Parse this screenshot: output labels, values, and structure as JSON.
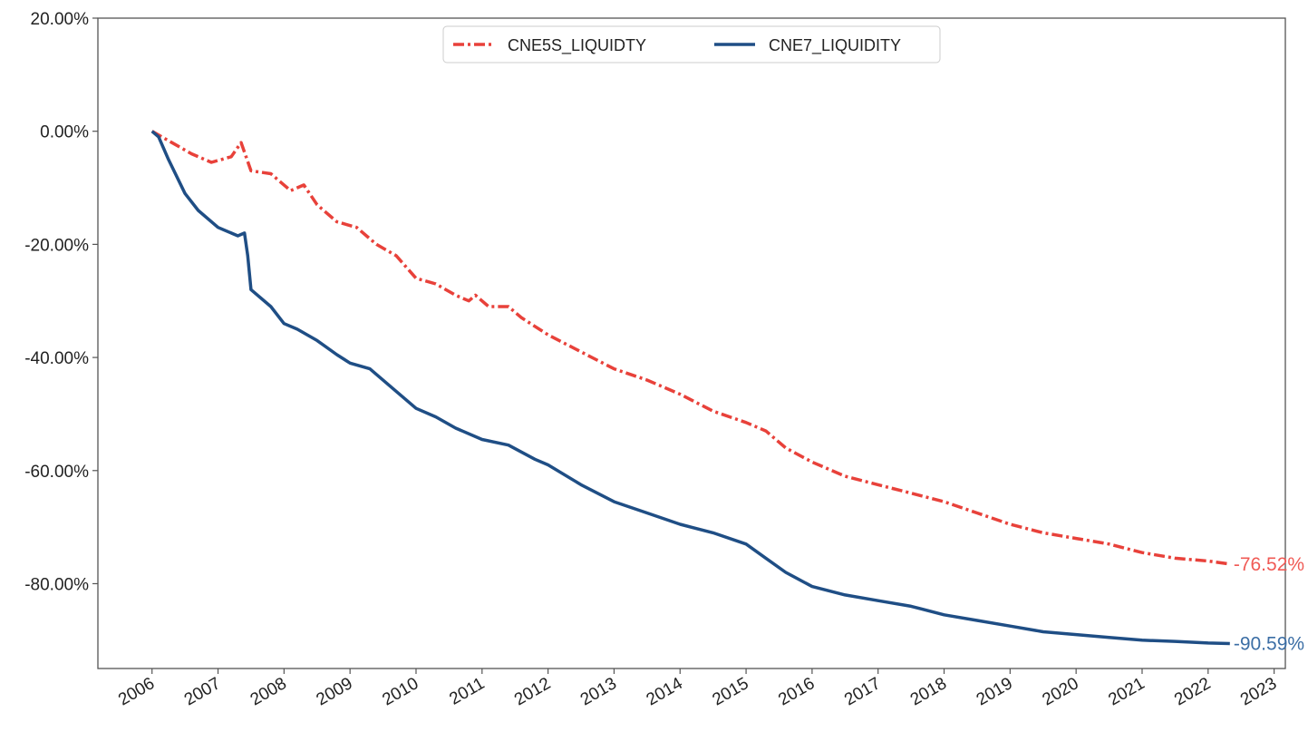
{
  "chart_data": {
    "type": "line",
    "title": "",
    "xlabel": "",
    "ylabel": "",
    "xlim": [
      2005.18,
      2023.17
    ],
    "ylim": [
      -95,
      20
    ],
    "grid": false,
    "legend_position": "top-center",
    "y_ticks": [
      20,
      0,
      -20,
      -40,
      -60,
      -80
    ],
    "y_tick_labels": [
      "20.00%",
      "0.00%",
      "-20.00%",
      "-40.00%",
      "-60.00%",
      "-80.00%"
    ],
    "x_ticks": [
      2006,
      2007,
      2008,
      2009,
      2010,
      2011,
      2012,
      2013,
      2014,
      2015,
      2016,
      2017,
      2018,
      2019,
      2020,
      2021,
      2022,
      2023
    ],
    "x_tick_labels": [
      "2006",
      "2007",
      "2008",
      "2009",
      "2010",
      "2011",
      "2012",
      "2013",
      "2014",
      "2015",
      "2016",
      "2017",
      "2018",
      "2019",
      "2020",
      "2021",
      "2022",
      "2023"
    ],
    "series": [
      {
        "name": "CNE5S_LIQUIDTY",
        "color": "#e8413a",
        "style": "dashdot",
        "end_label": "-76.52%",
        "end_label_color": "#f05a55",
        "x": [
          2006.0,
          2006.3,
          2006.6,
          2006.9,
          2007.2,
          2007.35,
          2007.5,
          2007.8,
          2008.1,
          2008.3,
          2008.5,
          2008.8,
          2009.1,
          2009.4,
          2009.7,
          2010.0,
          2010.3,
          2010.6,
          2010.8,
          2010.9,
          2011.1,
          2011.4,
          2011.6,
          2012.0,
          2012.5,
          2013.0,
          2013.5,
          2014.0,
          2014.5,
          2015.0,
          2015.3,
          2015.6,
          2016.0,
          2016.5,
          2017.0,
          2017.5,
          2018.0,
          2018.5,
          2019.0,
          2019.5,
          2020.0,
          2020.5,
          2021.0,
          2021.5,
          2022.0,
          2022.33
        ],
        "values": [
          0,
          -2,
          -4,
          -5.5,
          -4.5,
          -2,
          -7,
          -7.5,
          -10.5,
          -9.5,
          -13,
          -16,
          -17,
          -20,
          -22,
          -26,
          -27,
          -29,
          -30,
          -29,
          -31,
          -31,
          -33,
          -36,
          -39,
          -42,
          -44,
          -46.5,
          -49.5,
          -51.5,
          -53,
          -56,
          -58.5,
          -61,
          -62.5,
          -64,
          -65.5,
          -67.5,
          -69.5,
          -71,
          -72,
          -73,
          -74.5,
          -75.5,
          -76,
          -76.52
        ]
      },
      {
        "name": "CNE7_LIQUIDITY",
        "color": "#1f4e85",
        "style": "solid",
        "end_label": "-90.59%",
        "end_label_color": "#3b6ea5",
        "x": [
          2006.0,
          2006.1,
          2006.25,
          2006.5,
          2006.7,
          2007.0,
          2007.3,
          2007.4,
          2007.45,
          2007.5,
          2007.8,
          2008.0,
          2008.2,
          2008.5,
          2008.8,
          2009.0,
          2009.3,
          2009.6,
          2010.0,
          2010.3,
          2010.6,
          2011.0,
          2011.4,
          2011.8,
          2012.0,
          2012.5,
          2013.0,
          2013.5,
          2014.0,
          2014.5,
          2015.0,
          2015.3,
          2015.6,
          2016.0,
          2016.5,
          2017.0,
          2017.5,
          2018.0,
          2018.5,
          2019.0,
          2019.5,
          2020.0,
          2020.5,
          2021.0,
          2021.5,
          2022.0,
          2022.33
        ],
        "values": [
          0,
          -1,
          -5,
          -11,
          -14,
          -17,
          -18.5,
          -18,
          -22,
          -28,
          -31,
          -34,
          -35,
          -37,
          -39.5,
          -41,
          -42,
          -45,
          -49,
          -50.5,
          -52.5,
          -54.5,
          -55.5,
          -58,
          -59,
          -62.5,
          -65.5,
          -67.5,
          -69.5,
          -71,
          -73,
          -75.5,
          -78,
          -80.5,
          -82,
          -83,
          -84,
          -85.5,
          -86.5,
          -87.5,
          -88.5,
          -89,
          -89.5,
          -90,
          -90.2,
          -90.5,
          -90.59
        ]
      }
    ]
  }
}
